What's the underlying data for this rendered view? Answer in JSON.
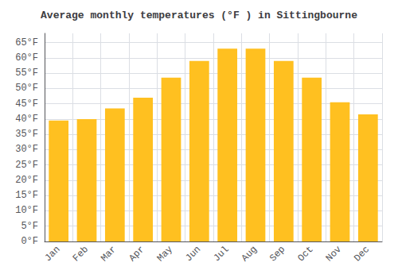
{
  "chart_data": {
    "type": "bar",
    "title": "Average monthly temperatures (°F ) in Sittingbourne",
    "categories": [
      "Jan",
      "Feb",
      "Mar",
      "Apr",
      "May",
      "Jun",
      "Jul",
      "Aug",
      "Sep",
      "Oct",
      "Nov",
      "Dec"
    ],
    "values": [
      39.5,
      40.0,
      43.5,
      47.0,
      53.5,
      59.0,
      63.0,
      63.0,
      59.0,
      53.5,
      45.5,
      41.5
    ],
    "color": "#FFC020",
    "ylim": [
      0,
      68
    ],
    "yticks": [
      {
        "value": 0,
        "label": "0°F"
      },
      {
        "value": 5,
        "label": "5°F"
      },
      {
        "value": 10,
        "label": "10°F"
      },
      {
        "value": 15,
        "label": "15°F"
      },
      {
        "value": 20,
        "label": "20°F"
      },
      {
        "value": 25,
        "label": "25°F"
      },
      {
        "value": 30,
        "label": "30°F"
      },
      {
        "value": 35,
        "label": "35°F"
      },
      {
        "value": 40,
        "label": "40°F"
      },
      {
        "value": 45,
        "label": "45°F"
      },
      {
        "value": 50,
        "label": "50°F"
      },
      {
        "value": 55,
        "label": "55°F"
      },
      {
        "value": 60,
        "label": "60°F"
      },
      {
        "value": 65,
        "label": "65°F"
      }
    ],
    "grid": true
  }
}
